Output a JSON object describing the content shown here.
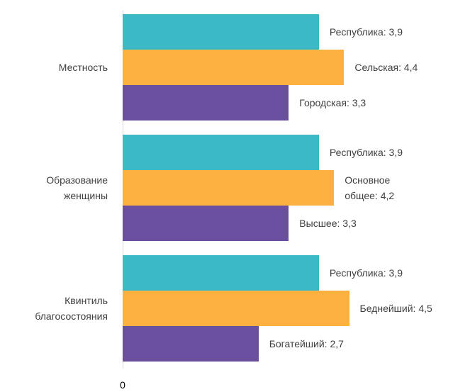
{
  "chart_data": {
    "type": "bar",
    "orientation": "horizontal",
    "categories": [
      "Местность",
      "Образование женщины",
      "Квинтиль благосостояния"
    ],
    "series": [
      {
        "color": "#3bb9c6",
        "values": [
          3.9,
          3.9,
          3.9
        ],
        "value_labels": [
          "Республика: 3,9",
          "Республика: 3,9",
          "Республика: 3,9"
        ]
      },
      {
        "color": "#fbb040",
        "values": [
          4.4,
          4.2,
          4.5
        ],
        "value_labels": [
          "Сельская: 4,4",
          "Основное общее: 4,2",
          "Беднейший: 4,5"
        ]
      },
      {
        "color": "#6a4fa0",
        "values": [
          3.3,
          3.3,
          2.7
        ],
        "value_labels": [
          "Городская: 3,3",
          "Высшее: 3,3",
          "Богатейший: 2,7"
        ]
      }
    ],
    "xlim": [
      0,
      7
    ],
    "xticks": [
      0
    ]
  }
}
